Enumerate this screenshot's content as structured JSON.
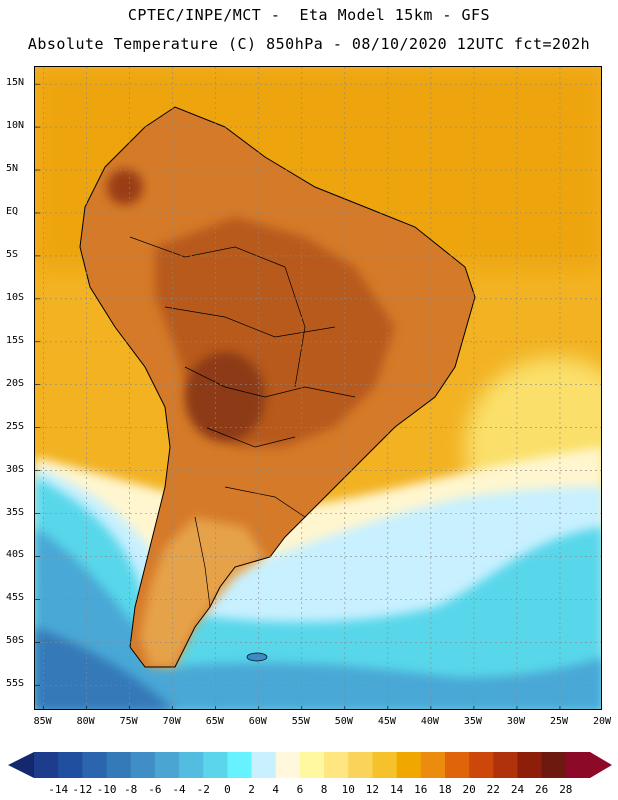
{
  "header": {
    "line1": "CPTEC/INPE/MCT -  Eta Model 15km - GFS",
    "line2": "Absolute Temperature (C) 850hPa - 08/10/2020 12UTC fct=202h"
  },
  "map": {
    "projection": "lat-lon",
    "lat_range": [
      -58,
      17
    ],
    "lon_range": [
      -86,
      -20
    ],
    "lat_ticks": [
      {
        "label": "15N",
        "value": 15
      },
      {
        "label": "10N",
        "value": 10
      },
      {
        "label": "5N",
        "value": 5
      },
      {
        "label": "EQ",
        "value": 0
      },
      {
        "label": "5S",
        "value": -5
      },
      {
        "label": "10S",
        "value": -10
      },
      {
        "label": "15S",
        "value": -15
      },
      {
        "label": "20S",
        "value": -20
      },
      {
        "label": "25S",
        "value": -25
      },
      {
        "label": "30S",
        "value": -30
      },
      {
        "label": "35S",
        "value": -35
      },
      {
        "label": "40S",
        "value": -40
      },
      {
        "label": "45S",
        "value": -45
      },
      {
        "label": "50S",
        "value": -50
      },
      {
        "label": "55S",
        "value": -55
      }
    ],
    "lon_ticks": [
      {
        "label": "85W",
        "value": -85
      },
      {
        "label": "80W",
        "value": -80
      },
      {
        "label": "75W",
        "value": -75
      },
      {
        "label": "70W",
        "value": -70
      },
      {
        "label": "65W",
        "value": -65
      },
      {
        "label": "60W",
        "value": -60
      },
      {
        "label": "55W",
        "value": -55
      },
      {
        "label": "50W",
        "value": -50
      },
      {
        "label": "45W",
        "value": -45
      },
      {
        "label": "40W",
        "value": -40
      },
      {
        "label": "35W",
        "value": -35
      },
      {
        "label": "30W",
        "value": -30
      },
      {
        "label": "25W",
        "value": -25
      },
      {
        "label": "20W",
        "value": -20
      }
    ]
  },
  "colorbar": {
    "unit": "C",
    "labels": [
      "-14",
      "-12",
      "-10",
      "-8",
      "-6",
      "-4",
      "-2",
      "0",
      "2",
      "4",
      "6",
      "8",
      "10",
      "12",
      "14",
      "16",
      "18",
      "20",
      "22",
      "24",
      "26",
      "28"
    ],
    "colors": [
      "#1e3c8c",
      "#1f4f9e",
      "#2a65ad",
      "#3479b8",
      "#3f8fc6",
      "#4aa5d3",
      "#52bde0",
      "#5ad5ea",
      "#66f2ff",
      "#c8f0ff",
      "#fff8dc",
      "#fff8a0",
      "#ffe680",
      "#fad45a",
      "#f5c22c",
      "#f0a800",
      "#eb8c0f",
      "#e0640a",
      "#cd460a",
      "#af320a",
      "#8c1e0a",
      "#6e190f",
      "#8c0a28"
    ],
    "left_arrow_color": "#14286e",
    "right_arrow_color": "#8c0a28"
  }
}
